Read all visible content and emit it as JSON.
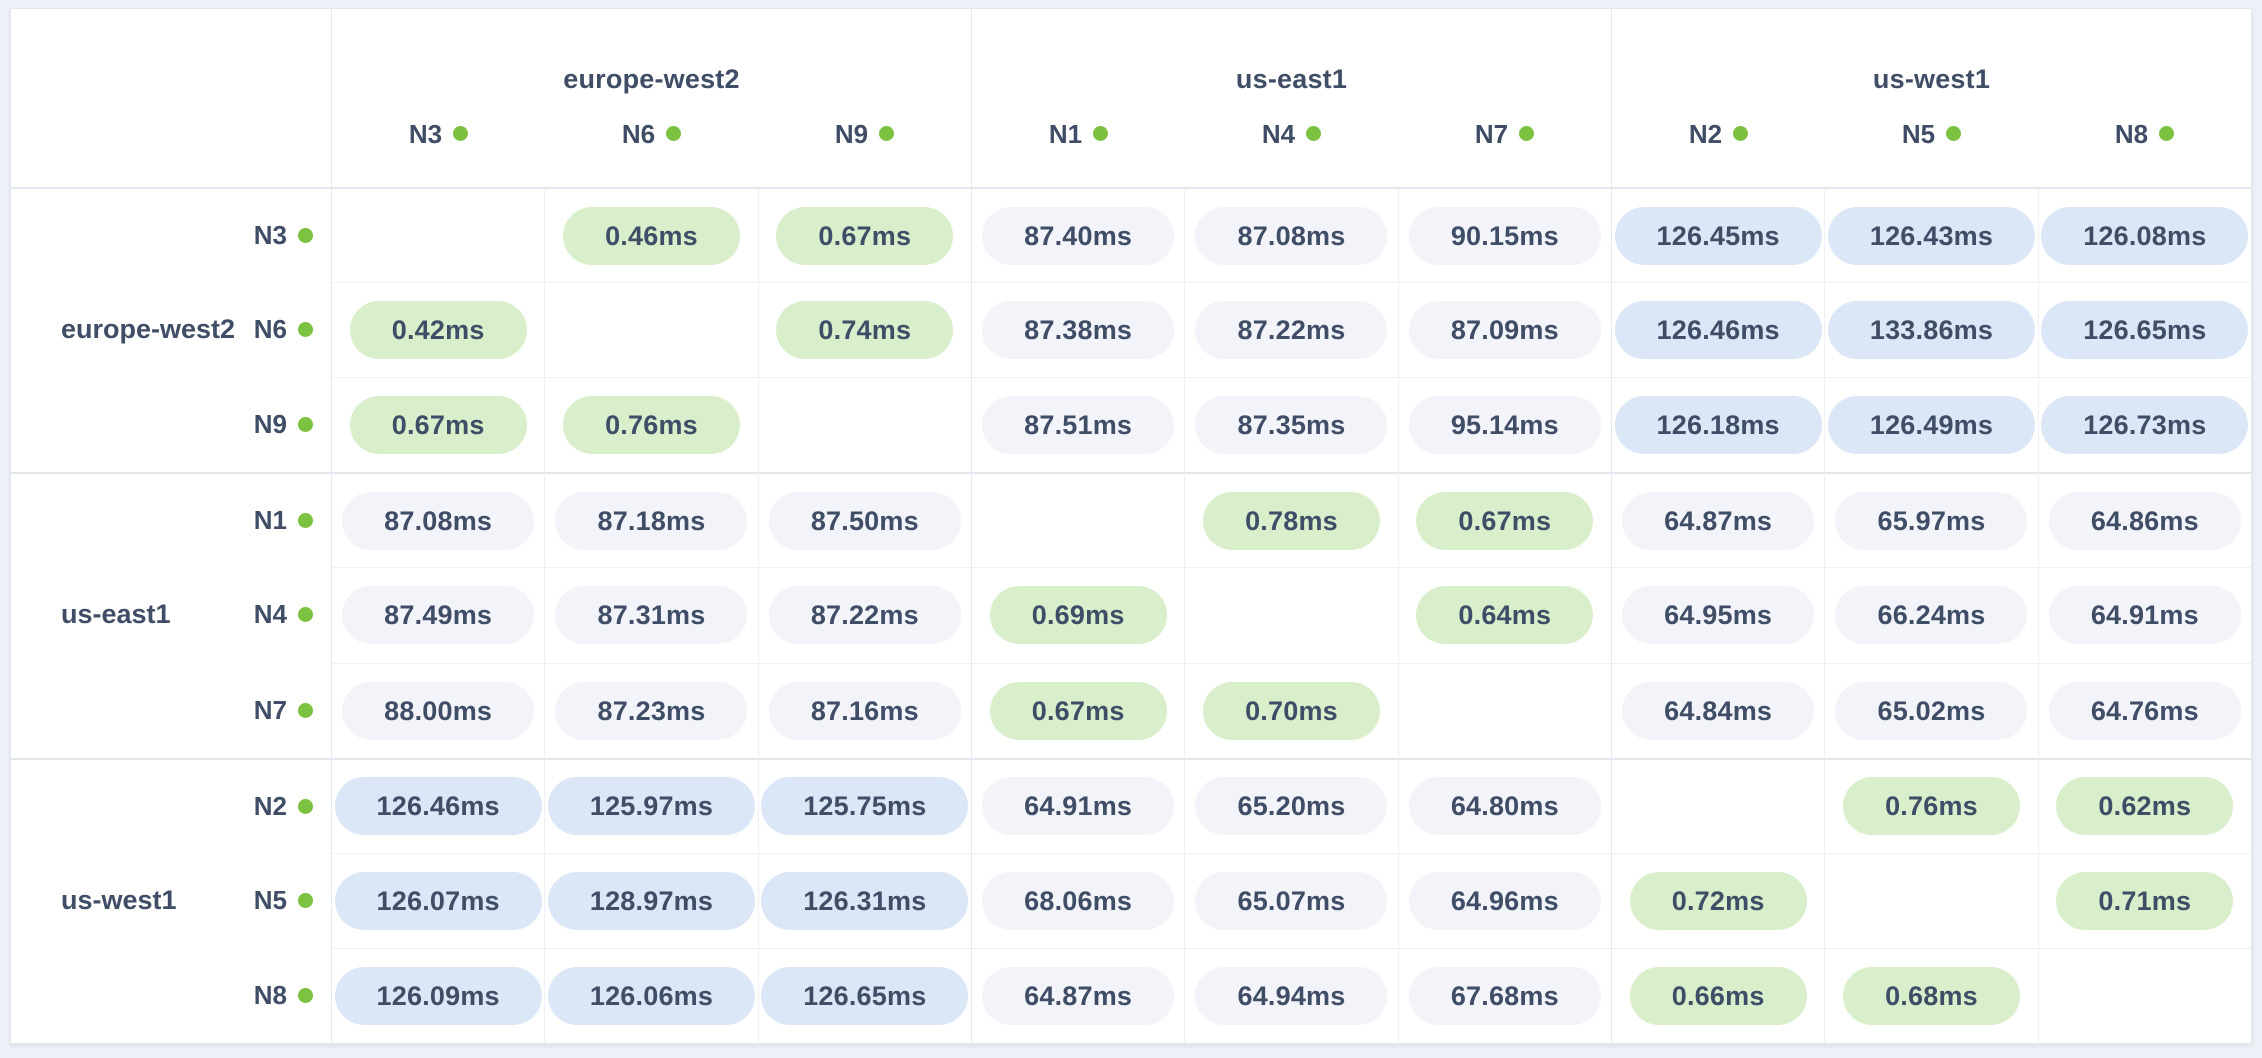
{
  "app": "network-latency-matrix",
  "unit": "ms",
  "status_dot_color": "#7cc140",
  "level_colors": {
    "fast": "#d9efcb",
    "mid": "#f2f4f9",
    "slow": "#dbe7f6"
  },
  "header": {
    "groups": [
      {
        "region": "europe-west2",
        "nodes": [
          "N3",
          "N6",
          "N9"
        ]
      },
      {
        "region": "us-east1",
        "nodes": [
          "N1",
          "N4",
          "N7"
        ]
      },
      {
        "region": "us-west1",
        "nodes": [
          "N2",
          "N5",
          "N8"
        ]
      }
    ]
  },
  "matrix": {
    "rows": [
      {
        "region": "europe-west2",
        "node": "N3",
        "cells": [
          "",
          "0.46ms",
          "0.67ms",
          "87.40ms",
          "87.08ms",
          "90.15ms",
          "126.45ms",
          "126.43ms",
          "126.08ms"
        ]
      },
      {
        "region": "europe-west2",
        "node": "N6",
        "cells": [
          "0.42ms",
          "",
          "0.74ms",
          "87.38ms",
          "87.22ms",
          "87.09ms",
          "126.46ms",
          "133.86ms",
          "126.65ms"
        ]
      },
      {
        "region": "europe-west2",
        "node": "N9",
        "cells": [
          "0.67ms",
          "0.76ms",
          "",
          "87.51ms",
          "87.35ms",
          "95.14ms",
          "126.18ms",
          "126.49ms",
          "126.73ms"
        ]
      },
      {
        "region": "us-east1",
        "node": "N1",
        "cells": [
          "87.08ms",
          "87.18ms",
          "87.50ms",
          "",
          "0.78ms",
          "0.67ms",
          "64.87ms",
          "65.97ms",
          "64.86ms"
        ]
      },
      {
        "region": "us-east1",
        "node": "N4",
        "cells": [
          "87.49ms",
          "87.31ms",
          "87.22ms",
          "0.69ms",
          "",
          "0.64ms",
          "64.95ms",
          "66.24ms",
          "64.91ms"
        ]
      },
      {
        "region": "us-east1",
        "node": "N7",
        "cells": [
          "88.00ms",
          "87.23ms",
          "87.16ms",
          "0.67ms",
          "0.70ms",
          "",
          "64.84ms",
          "65.02ms",
          "64.76ms"
        ]
      },
      {
        "region": "us-west1",
        "node": "N2",
        "cells": [
          "126.46ms",
          "125.97ms",
          "125.75ms",
          "64.91ms",
          "65.20ms",
          "64.80ms",
          "",
          "0.76ms",
          "0.62ms"
        ]
      },
      {
        "region": "us-west1",
        "node": "N5",
        "cells": [
          "126.07ms",
          "128.97ms",
          "126.31ms",
          "68.06ms",
          "65.07ms",
          "64.96ms",
          "0.72ms",
          "",
          "0.71ms"
        ]
      },
      {
        "region": "us-west1",
        "node": "N8",
        "cells": [
          "126.09ms",
          "126.06ms",
          "126.65ms",
          "64.87ms",
          "64.94ms",
          "67.68ms",
          "0.66ms",
          "0.68ms",
          ""
        ]
      }
    ]
  },
  "chart_data": {
    "type": "heatmap",
    "title": "",
    "unit": "ms",
    "x_categories": [
      "europe-west2 N3",
      "europe-west2 N6",
      "europe-west2 N9",
      "us-east1 N1",
      "us-east1 N4",
      "us-east1 N7",
      "us-west1 N2",
      "us-west1 N5",
      "us-west1 N8"
    ],
    "y_categories": [
      "europe-west2 N3",
      "europe-west2 N6",
      "europe-west2 N9",
      "us-east1 N1",
      "us-east1 N4",
      "us-east1 N7",
      "us-west1 N2",
      "us-west1 N5",
      "us-west1 N8"
    ],
    "values": [
      [
        null,
        0.46,
        0.67,
        87.4,
        87.08,
        90.15,
        126.45,
        126.43,
        126.08
      ],
      [
        0.42,
        null,
        0.74,
        87.38,
        87.22,
        87.09,
        126.46,
        133.86,
        126.65
      ],
      [
        0.67,
        0.76,
        null,
        87.51,
        87.35,
        95.14,
        126.18,
        126.49,
        126.73
      ],
      [
        87.08,
        87.18,
        87.5,
        null,
        0.78,
        0.67,
        64.87,
        65.97,
        64.86
      ],
      [
        87.49,
        87.31,
        87.22,
        0.69,
        null,
        0.64,
        64.95,
        66.24,
        64.91
      ],
      [
        88.0,
        87.23,
        87.16,
        0.67,
        0.7,
        null,
        64.84,
        65.02,
        64.76
      ],
      [
        126.46,
        125.97,
        125.75,
        64.91,
        65.2,
        64.8,
        null,
        0.76,
        0.62
      ],
      [
        126.07,
        128.97,
        126.31,
        68.06,
        65.07,
        64.96,
        0.72,
        null,
        0.71
      ],
      [
        126.09,
        126.06,
        126.65,
        64.87,
        64.94,
        67.68,
        0.66,
        0.68,
        null
      ]
    ],
    "color_levels": {
      "fast_under_ms": 1,
      "mid_under_ms": 100,
      "slow_over_ms": 100
    },
    "legend_position": "none",
    "grid": true
  }
}
